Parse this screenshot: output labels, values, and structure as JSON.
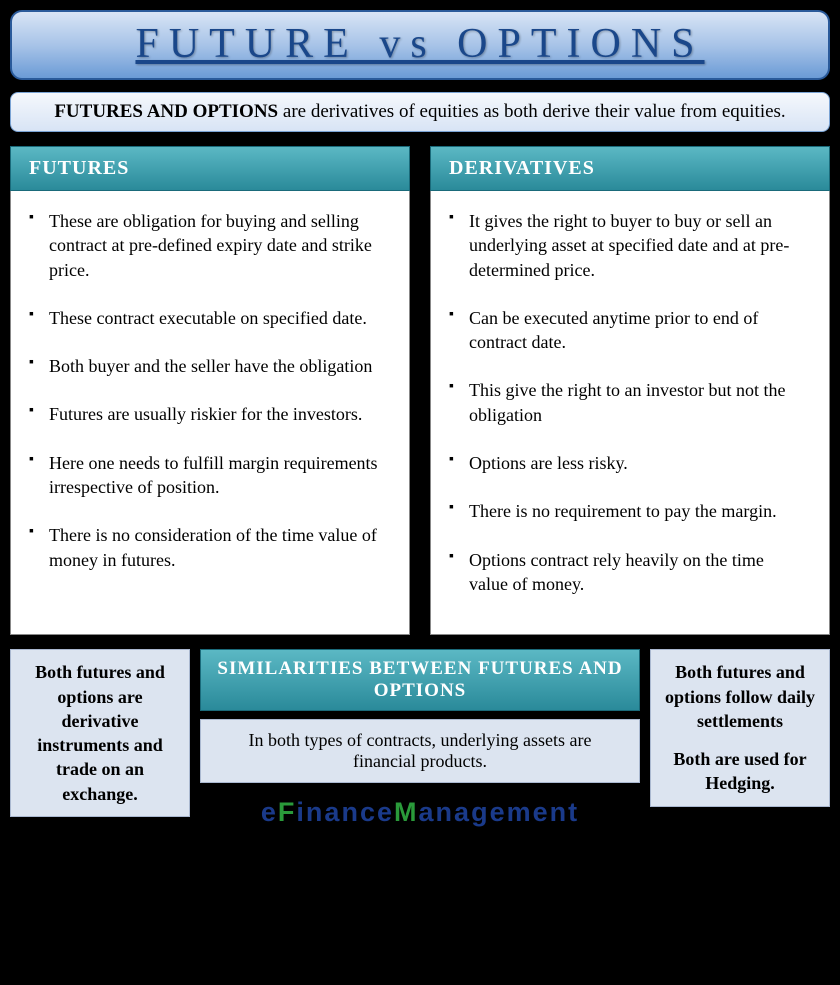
{
  "title": "FUTURE vs OPTIONS",
  "intro": {
    "lead": "FUTURES AND OPTIONS",
    "rest": " are derivatives of equities as both derive their value from equities."
  },
  "columns": {
    "left": {
      "header": "FUTURES",
      "items": [
        "These are obligation for buying and selling contract at pre-defined expiry date and strike price.",
        "These contract executable on specified date.",
        "Both buyer and the seller have the obligation",
        "Futures are usually riskier for the investors.",
        "Here one needs to fulfill margin requirements irrespective of position.",
        "There is no consideration of the time value of money in futures."
      ]
    },
    "right": {
      "header": "DERIVATIVES",
      "items": [
        "It gives the right to buyer to buy or sell an underlying asset at specified date and at pre-determined price.",
        "Can be executed anytime prior to end of contract date.",
        "This give the right to an investor but not the obligation",
        "Options are less risky.",
        "There is no requirement to pay the margin.",
        "Options contract rely heavily on the time value of money."
      ]
    }
  },
  "bottom": {
    "left_box": "Both futures and options are derivative instruments and trade on an exchange.",
    "sim_header": "SIMILARITIES BETWEEN FUTURES AND OPTIONS",
    "sim_body": "In both types of contracts, underlying assets are financial products.",
    "right_box_1": "Both futures and options follow daily settlements",
    "right_box_2": "Both are used for Hedging."
  },
  "brand": {
    "parts": [
      {
        "text": "e",
        "color": "#1a3a8a"
      },
      {
        "text": "F",
        "color": "#2a9a3a"
      },
      {
        "text": "i",
        "color": "#1a3a8a"
      },
      {
        "text": "n",
        "color": "#1a3a8a"
      },
      {
        "text": "a",
        "color": "#1a3a8a"
      },
      {
        "text": "n",
        "color": "#1a3a8a"
      },
      {
        "text": "c",
        "color": "#1a3a8a"
      },
      {
        "text": "e",
        "color": "#1a3a8a"
      },
      {
        "text": "M",
        "color": "#2a9a3a"
      },
      {
        "text": "a",
        "color": "#1a3a8a"
      },
      {
        "text": "n",
        "color": "#1a3a8a"
      },
      {
        "text": "a",
        "color": "#1a3a8a"
      },
      {
        "text": "g",
        "color": "#1a3a8a"
      },
      {
        "text": "e",
        "color": "#1a3a8a"
      },
      {
        "text": "m",
        "color": "#1a3a8a"
      },
      {
        "text": "e",
        "color": "#1a3a8a"
      },
      {
        "text": "n",
        "color": "#1a3a8a"
      },
      {
        "text": "t",
        "color": "#1a3a8a"
      }
    ]
  },
  "colors": {
    "title_text": "#1a478a",
    "teal_grad_top": "#5bb8c4",
    "teal_grad_bottom": "#2a8a9a",
    "light_box": "#dce4f0"
  }
}
